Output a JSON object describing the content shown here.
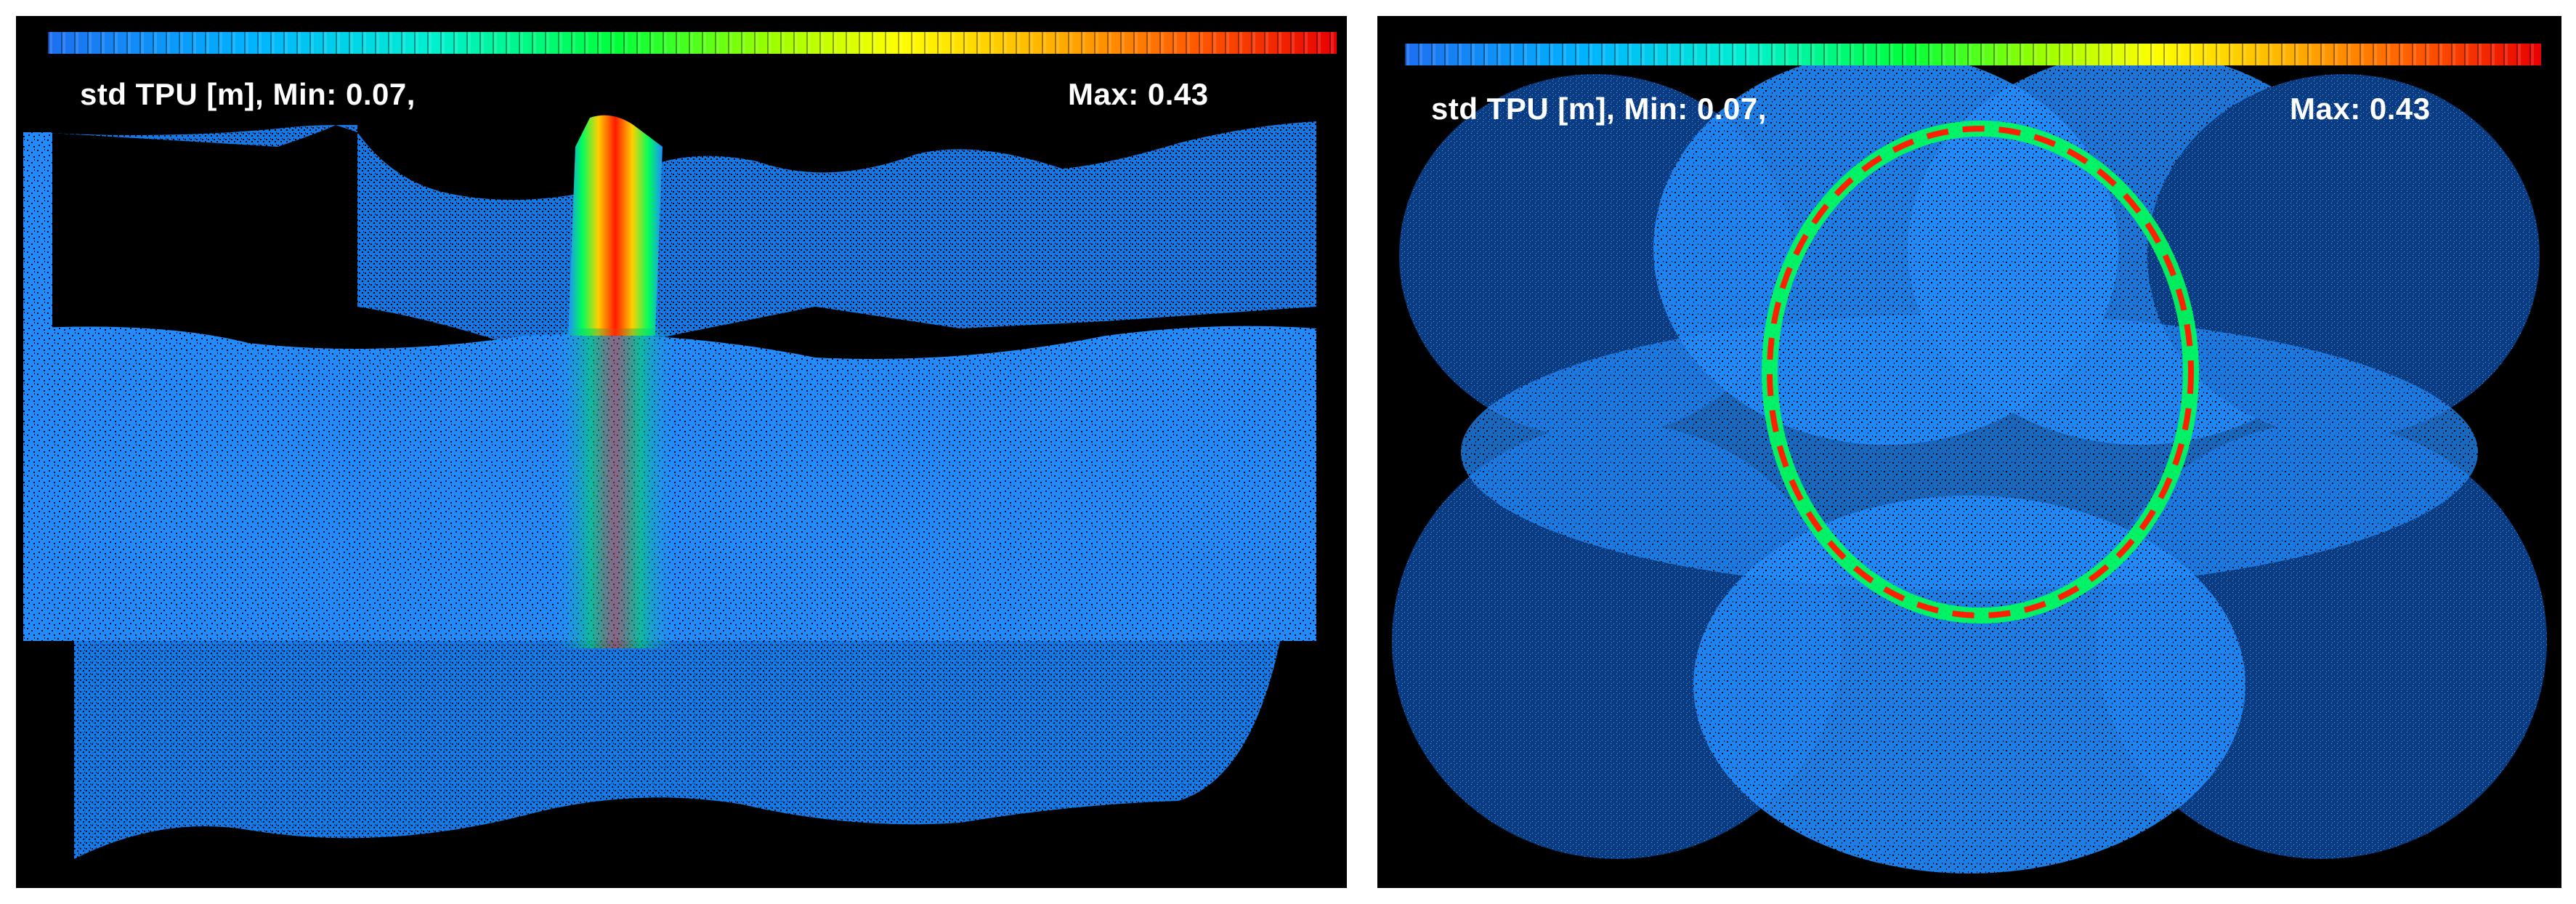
{
  "panels": [
    {
      "id": "left",
      "scene": "terrain-strip",
      "colorbar": {
        "colormap": "jet",
        "colors": [
          "#1e6ff0",
          "#00b4ff",
          "#00f0d0",
          "#00ff3c",
          "#9aff00",
          "#ffff00",
          "#ffb000",
          "#ff5a00",
          "#e80000"
        ]
      },
      "label_min": "std TPU [m], Min: 0.07,",
      "label_max": "Max: 0.43",
      "point_color": "#1e90ff"
    },
    {
      "id": "right",
      "scene": "overlapping-circular-scans",
      "colorbar": {
        "colormap": "jet",
        "colors": [
          "#1e6ff0",
          "#00b4ff",
          "#00f0d0",
          "#00ff3c",
          "#9aff00",
          "#ffff00",
          "#ffb000",
          "#ff5a00",
          "#e80000"
        ]
      },
      "label_min": "std TPU [m], Min: 0.07,",
      "label_max": "Max: 0.43",
      "point_color": "#1e90ff"
    }
  ]
}
